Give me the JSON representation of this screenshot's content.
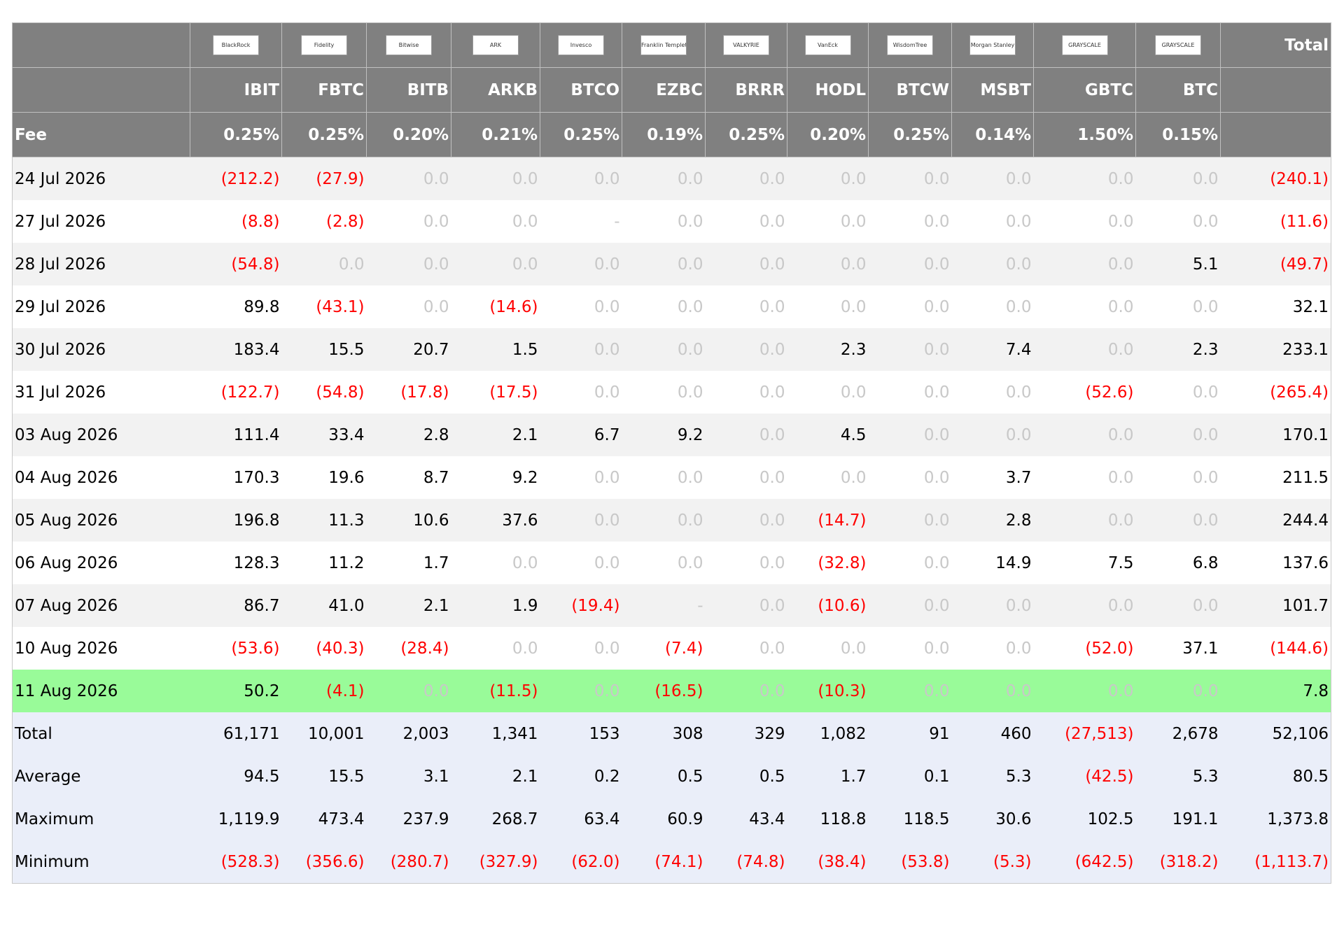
{
  "header": {
    "total_label": "Total",
    "fee_label": "Fee",
    "logos": [
      "BlackRock",
      "Fidelity",
      "Bitwise",
      "ARK",
      "Invesco",
      "Franklin Templeton",
      "VALKYRIE",
      "VanEck",
      "WisdomTree",
      "Morgan Stanley",
      "GRAYSCALE",
      "GRAYSCALE"
    ],
    "tickers": [
      "IBIT",
      "FBTC",
      "BITB",
      "ARKB",
      "BTCO",
      "EZBC",
      "BRRR",
      "HODL",
      "BTCW",
      "MSBT",
      "GBTC",
      "BTC"
    ],
    "fees": [
      "0.25%",
      "0.25%",
      "0.20%",
      "0.21%",
      "0.25%",
      "0.19%",
      "0.25%",
      "0.20%",
      "0.25%",
      "0.14%",
      "1.50%",
      "0.15%"
    ]
  },
  "rows": [
    {
      "label": "24 Jul 2026",
      "values": [
        "(212.2)",
        "(27.9)",
        "0.0",
        "0.0",
        "0.0",
        "0.0",
        "0.0",
        "0.0",
        "0.0",
        "0.0",
        "0.0",
        "0.0",
        "(240.1)"
      ]
    },
    {
      "label": "27 Jul 2026",
      "values": [
        "(8.8)",
        "(2.8)",
        "0.0",
        "0.0",
        "-",
        "0.0",
        "0.0",
        "0.0",
        "0.0",
        "0.0",
        "0.0",
        "0.0",
        "(11.6)"
      ]
    },
    {
      "label": "28 Jul 2026",
      "values": [
        "(54.8)",
        "0.0",
        "0.0",
        "0.0",
        "0.0",
        "0.0",
        "0.0",
        "0.0",
        "0.0",
        "0.0",
        "0.0",
        "5.1",
        "(49.7)"
      ]
    },
    {
      "label": "29 Jul 2026",
      "values": [
        "89.8",
        "(43.1)",
        "0.0",
        "(14.6)",
        "0.0",
        "0.0",
        "0.0",
        "0.0",
        "0.0",
        "0.0",
        "0.0",
        "0.0",
        "32.1"
      ]
    },
    {
      "label": "30 Jul 2026",
      "values": [
        "183.4",
        "15.5",
        "20.7",
        "1.5",
        "0.0",
        "0.0",
        "0.0",
        "2.3",
        "0.0",
        "7.4",
        "0.0",
        "2.3",
        "233.1"
      ]
    },
    {
      "label": "31 Jul 2026",
      "values": [
        "(122.7)",
        "(54.8)",
        "(17.8)",
        "(17.5)",
        "0.0",
        "0.0",
        "0.0",
        "0.0",
        "0.0",
        "0.0",
        "(52.6)",
        "0.0",
        "(265.4)"
      ]
    },
    {
      "label": "03 Aug 2026",
      "values": [
        "111.4",
        "33.4",
        "2.8",
        "2.1",
        "6.7",
        "9.2",
        "0.0",
        "4.5",
        "0.0",
        "0.0",
        "0.0",
        "0.0",
        "170.1"
      ]
    },
    {
      "label": "04 Aug 2026",
      "values": [
        "170.3",
        "19.6",
        "8.7",
        "9.2",
        "0.0",
        "0.0",
        "0.0",
        "0.0",
        "0.0",
        "3.7",
        "0.0",
        "0.0",
        "211.5"
      ]
    },
    {
      "label": "05 Aug 2026",
      "values": [
        "196.8",
        "11.3",
        "10.6",
        "37.6",
        "0.0",
        "0.0",
        "0.0",
        "(14.7)",
        "0.0",
        "2.8",
        "0.0",
        "0.0",
        "244.4"
      ]
    },
    {
      "label": "06 Aug 2026",
      "values": [
        "128.3",
        "11.2",
        "1.7",
        "0.0",
        "0.0",
        "0.0",
        "0.0",
        "(32.8)",
        "0.0",
        "14.9",
        "7.5",
        "6.8",
        "137.6"
      ]
    },
    {
      "label": "07 Aug 2026",
      "values": [
        "86.7",
        "41.0",
        "2.1",
        "1.9",
        "(19.4)",
        "-",
        "0.0",
        "(10.6)",
        "0.0",
        "0.0",
        "0.0",
        "0.0",
        "101.7"
      ]
    },
    {
      "label": "10 Aug 2026",
      "values": [
        "(53.6)",
        "(40.3)",
        "(28.4)",
        "0.0",
        "0.0",
        "(7.4)",
        "0.0",
        "0.0",
        "0.0",
        "0.0",
        "(52.0)",
        "37.1",
        "(144.6)"
      ]
    },
    {
      "label": "11 Aug 2026",
      "values": [
        "50.2",
        "(4.1)",
        "0.0",
        "(11.5)",
        "0.0",
        "(16.5)",
        "0.0",
        "(10.3)",
        "0.0",
        "0.0",
        "0.0",
        "0.0",
        "7.8"
      ]
    }
  ],
  "summary": [
    {
      "label": "Total",
      "values": [
        "61,171",
        "10,001",
        "2,003",
        "1,341",
        "153",
        "308",
        "329",
        "1,082",
        "91",
        "460",
        "(27,513)",
        "2,678",
        "52,106"
      ]
    },
    {
      "label": "Average",
      "values": [
        "94.5",
        "15.5",
        "3.1",
        "2.1",
        "0.2",
        "0.5",
        "0.5",
        "1.7",
        "0.1",
        "5.3",
        "(42.5)",
        "5.3",
        "80.5"
      ]
    },
    {
      "label": "Maximum",
      "values": [
        "1,119.9",
        "473.4",
        "237.9",
        "268.7",
        "63.4",
        "60.9",
        "43.4",
        "118.8",
        "118.5",
        "30.6",
        "102.5",
        "191.1",
        "1,373.8"
      ]
    },
    {
      "label": "Minimum",
      "values": [
        "(528.3)",
        "(356.6)",
        "(280.7)",
        "(327.9)",
        "(62.0)",
        "(74.1)",
        "(74.8)",
        "(38.4)",
        "(53.8)",
        "(5.3)",
        "(642.5)",
        "(318.2)",
        "(1,113.7)"
      ]
    }
  ]
}
